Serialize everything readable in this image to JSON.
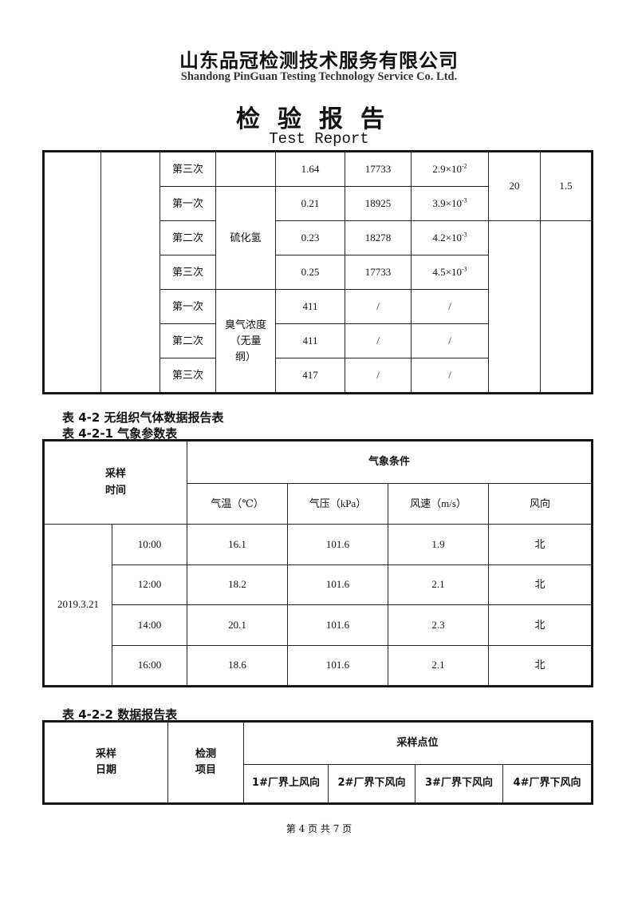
{
  "header": {
    "company": "山东品冠检测技术服务有限公司",
    "company_en": "Shandong PinGuan Testing Technology Service Co. Ltd.",
    "title": "检验报告",
    "title_en": "Test Report"
  },
  "table_continued": {
    "rows": [
      {
        "round": "第三次",
        "item": "",
        "c1": "1.64",
        "c2": "17733",
        "c3": {
          "mantissa": "2.9×10",
          "exp": "-2"
        }
      },
      {
        "round": "第一次",
        "item": "硫化氢",
        "c1": "0.21",
        "c2": "18925",
        "c3": {
          "mantissa": "3.9×10",
          "exp": "-3"
        }
      },
      {
        "round": "第二次",
        "item": "",
        "c1": "0.23",
        "c2": "18278",
        "c3": {
          "mantissa": "4.2×10",
          "exp": "-3"
        }
      },
      {
        "round": "第三次",
        "item": "",
        "c1": "0.25",
        "c2": "17733",
        "c3": {
          "mantissa": "4.5×10",
          "exp": "-3"
        }
      },
      {
        "round": "第一次",
        "item": "臭气浓度（无量纲）",
        "c1": "411",
        "c2": "/",
        "c3": {
          "mantissa": "/",
          "exp": ""
        }
      },
      {
        "round": "第二次",
        "item": "",
        "c1": "411",
        "c2": "/",
        "c3": {
          "mantissa": "/",
          "exp": ""
        }
      },
      {
        "round": "第三次",
        "item": "",
        "c1": "417",
        "c2": "/",
        "c3": {
          "mantissa": "/",
          "exp": ""
        }
      }
    ],
    "height_value": "20",
    "diameter_value": "1.5"
  },
  "captions": {
    "t42": "表 4-2 无组织气体数据报告表",
    "t421": "表 4-2-1 气象参数表",
    "t422": "表 4-2-2 数据报告表"
  },
  "weather": {
    "h_time": "采样\n时间",
    "h_cond": "气象条件",
    "h_temp": "气温（℃）",
    "h_press": "气压（kPa）",
    "h_wind": "风速（m/s）",
    "h_dir": "风向",
    "date": "2019.3.21",
    "rows": [
      {
        "time": "10:00",
        "temp": "16.1",
        "press": "101.6",
        "wind": "1.9",
        "dir": "北"
      },
      {
        "time": "12:00",
        "temp": "18.2",
        "press": "101.6",
        "wind": "2.1",
        "dir": "北"
      },
      {
        "time": "14:00",
        "temp": "20.1",
        "press": "101.6",
        "wind": "2.3",
        "dir": "北"
      },
      {
        "time": "16:00",
        "temp": "18.6",
        "press": "101.6",
        "wind": "2.1",
        "dir": "北"
      }
    ]
  },
  "data_report": {
    "h_date": "采样\n日期",
    "h_item": "检测\n项目",
    "h_points": "采样点位",
    "points": [
      "1#厂界上风向",
      "2#厂界下风向",
      "3#厂界下风向",
      "4#厂界下风向"
    ]
  },
  "footer": {
    "page": "第 4 页 共 7 页"
  }
}
